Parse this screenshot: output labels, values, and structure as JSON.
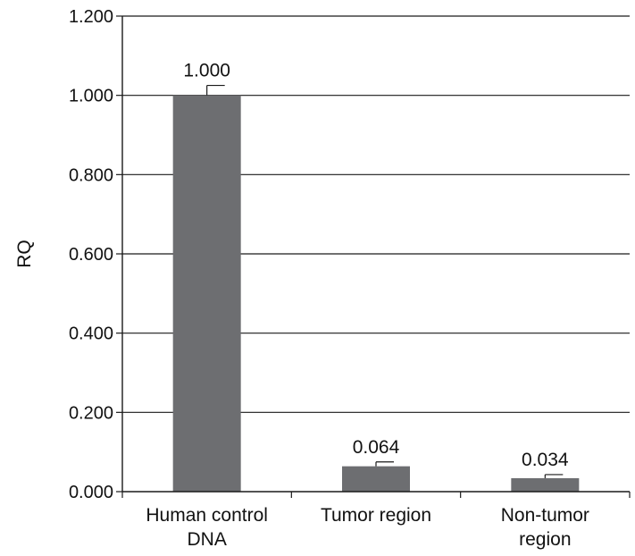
{
  "chart_data": {
    "type": "bar",
    "title": "",
    "xlabel": "",
    "ylabel": "RQ",
    "ylim": [
      0,
      1.2
    ],
    "y_ticks": [
      "0.000",
      "0.200",
      "0.400",
      "0.600",
      "0.800",
      "1.000",
      "1.200"
    ],
    "grid": "horizontal",
    "categories": [
      [
        "Human control",
        "DNA"
      ],
      [
        "Tumor region"
      ],
      [
        "Non-tumor",
        "region"
      ]
    ],
    "values": [
      1.0,
      0.064,
      0.034
    ],
    "error_bars": [
      0.025,
      0.011,
      0.009
    ],
    "data_labels": [
      "1.000",
      "0.064",
      "0.034"
    ],
    "colors": {
      "bar": "#6d6e71",
      "grid": "#1a1a1a",
      "axis": "#1a1a1a"
    }
  }
}
